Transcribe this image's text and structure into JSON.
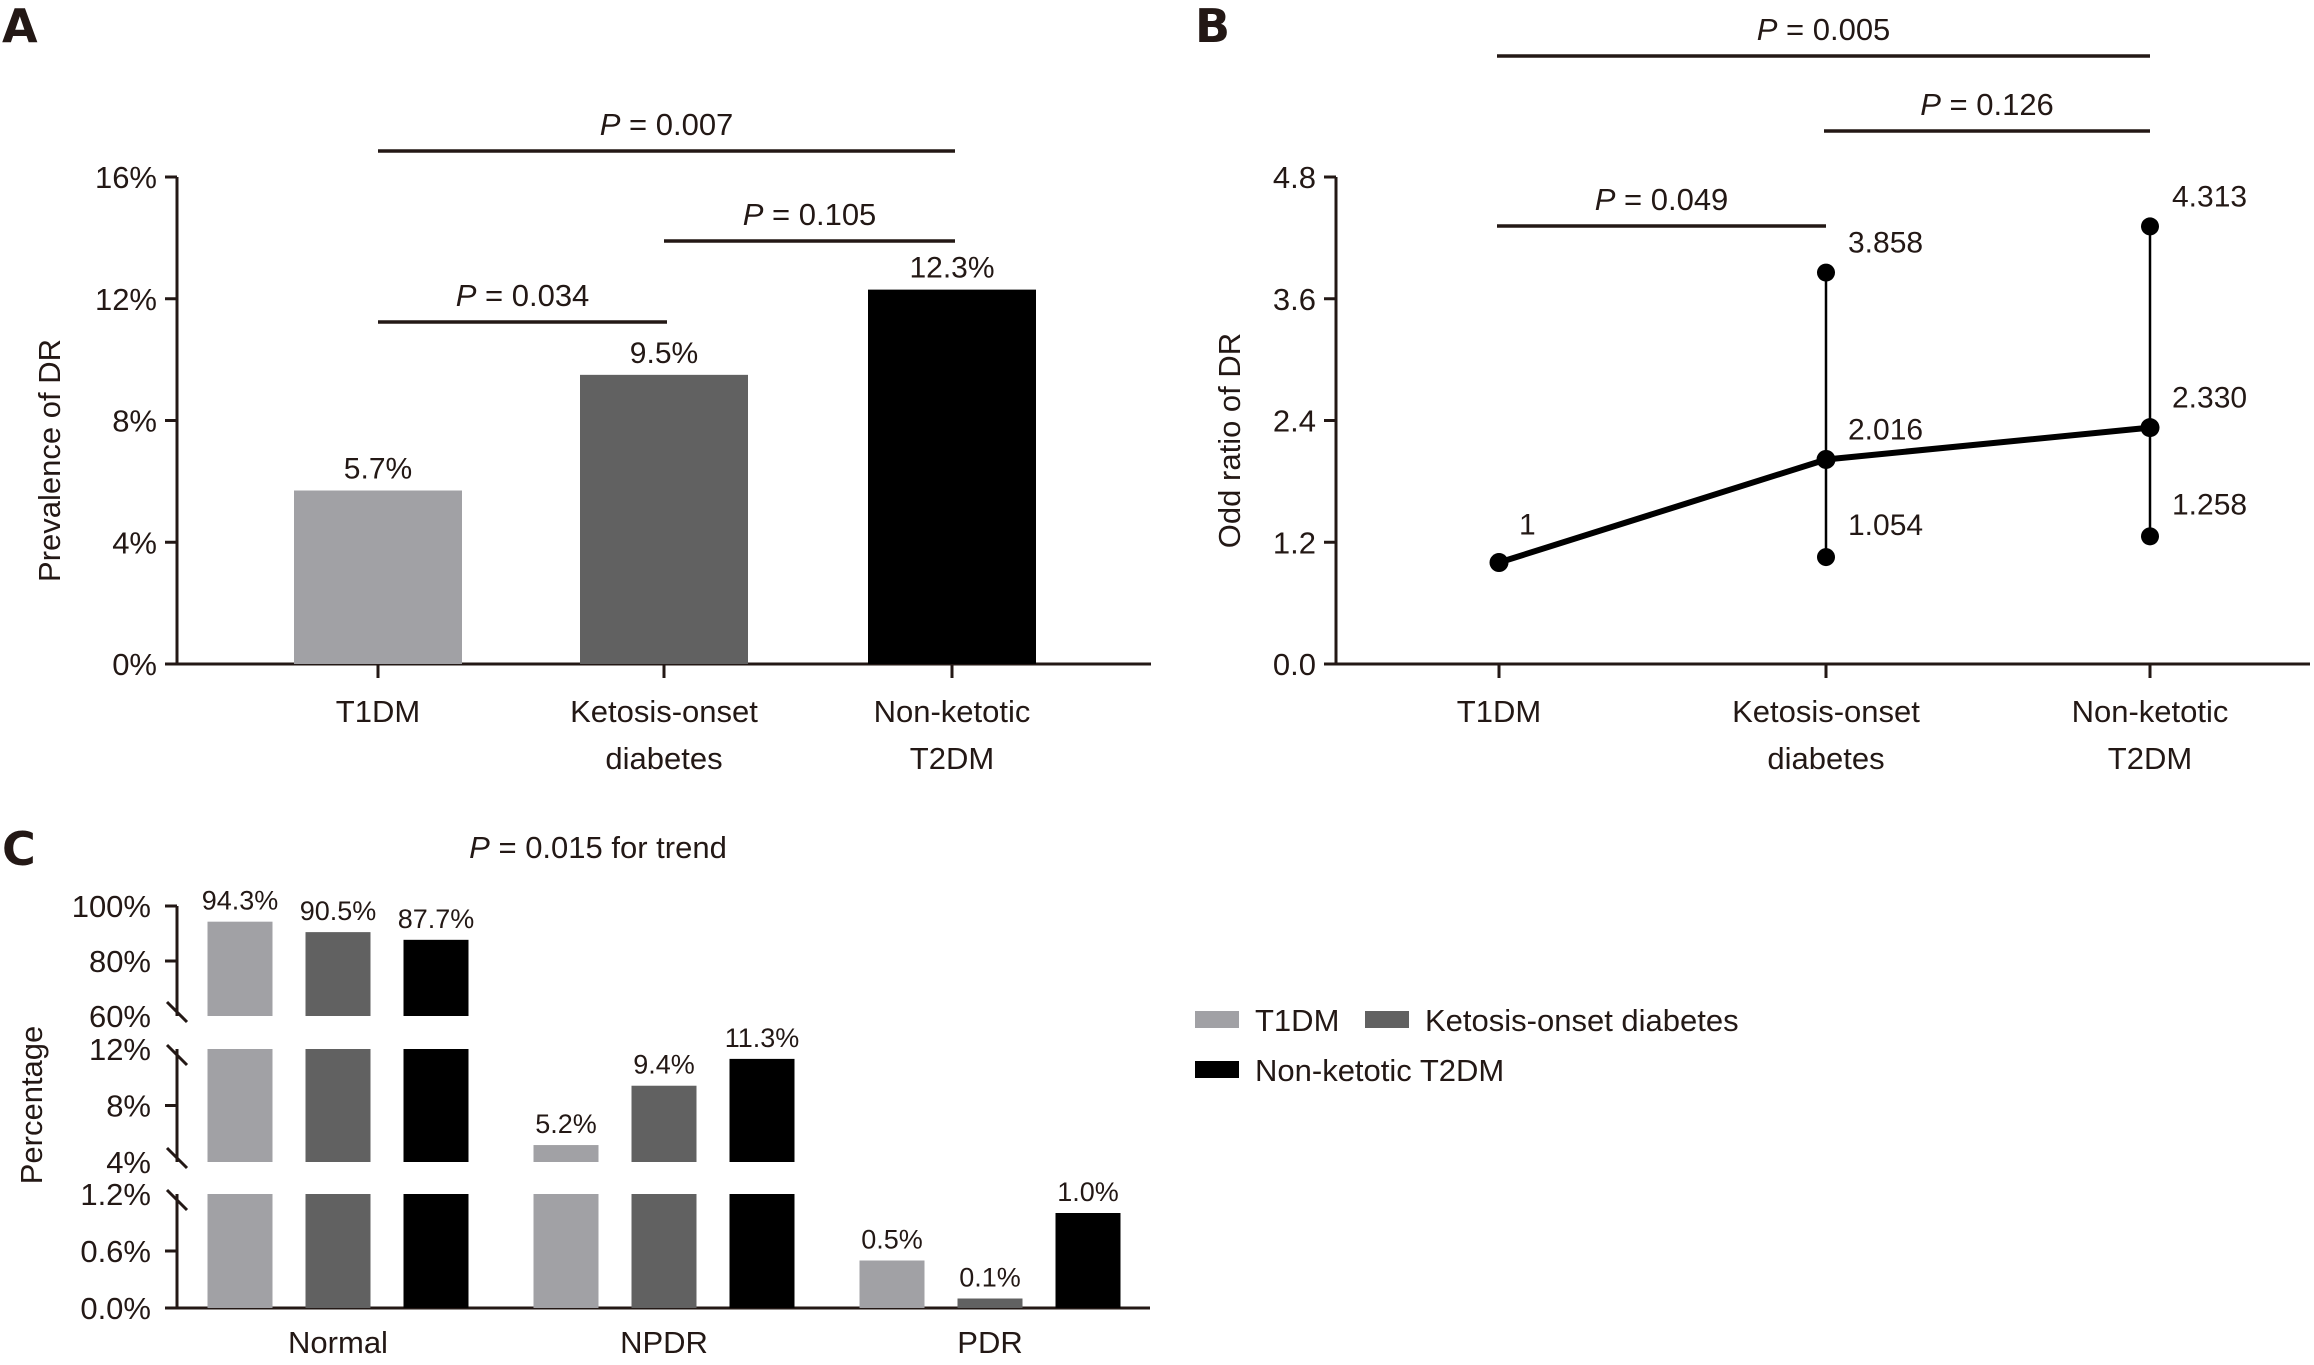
{
  "colors": {
    "T1DM": "#a1a1a5",
    "Ketosis-onset diabetes": "#616161",
    "Non-ketotic T2DM": "#000000",
    "text": "#231815"
  },
  "chart_data": [
    {
      "panel": "A",
      "type": "bar",
      "title": "",
      "xlabel": "",
      "ylabel": "Prevalence of DR",
      "categories": [
        [
          "T1DM"
        ],
        [
          "Ketosis-onset",
          "diabetes"
        ],
        [
          "Non-ketotic",
          "T2DM"
        ]
      ],
      "series_keys": [
        "T1DM",
        "Ketosis-onset diabetes",
        "Non-ketotic T2DM"
      ],
      "values": [
        5.7,
        9.5,
        12.3
      ],
      "value_labels": [
        "5.7%",
        "9.5%",
        "12.3%"
      ],
      "ylim": [
        0,
        16
      ],
      "yticks": [
        0,
        4,
        8,
        12,
        16
      ],
      "ytick_labels": [
        "0%",
        "4%",
        "8%",
        "12%",
        "16%"
      ],
      "grid": false,
      "comparisons": [
        {
          "from": 0,
          "to": 2,
          "label_p": "P",
          "label_rest": " = 0.007",
          "level": 3
        },
        {
          "from": 1,
          "to": 2,
          "label_p": "P",
          "label_rest": " = 0.105",
          "level": 2
        },
        {
          "from": 0,
          "to": 1,
          "label_p": "P",
          "label_rest": " = 0.034",
          "level": 1
        }
      ]
    },
    {
      "panel": "B",
      "type": "line",
      "title": "",
      "xlabel": "",
      "ylabel": "Odd ratio of DR",
      "categories": [
        [
          "T1DM"
        ],
        [
          "Ketosis-onset",
          "diabetes"
        ],
        [
          "Non-ketotic",
          "T2DM"
        ]
      ],
      "values": [
        1,
        2.016,
        2.33
      ],
      "value_labels": [
        "1",
        "2.016",
        "2.330"
      ],
      "ci_lower": [
        null,
        1.054,
        1.258
      ],
      "ci_lower_labels": [
        null,
        "1.054",
        "1.258"
      ],
      "ci_upper": [
        null,
        3.858,
        4.313
      ],
      "ci_upper_labels": [
        null,
        "3.858",
        "4.313"
      ],
      "ylim": [
        0,
        4.8
      ],
      "yticks": [
        0,
        1.2,
        2.4,
        3.6,
        4.8
      ],
      "ytick_labels": [
        "0.0",
        "1.2",
        "2.4",
        "3.6",
        "4.8"
      ],
      "grid": false,
      "comparisons": [
        {
          "from": 0,
          "to": 2,
          "label_p": "P",
          "label_rest": " = 0.005",
          "level": 3
        },
        {
          "from": 1,
          "to": 2,
          "label_p": "P",
          "label_rest": " = 0.126",
          "level": 2
        },
        {
          "from": 0,
          "to": 1,
          "label_p": "P",
          "label_rest": " = 0.049",
          "level": 1
        }
      ]
    },
    {
      "panel": "C",
      "type": "bar",
      "subtype": "grouped, broken y-axis",
      "title_p": "P",
      "title_rest": " = 0.015 for trend",
      "xlabel": "",
      "ylabel": "Percentage",
      "categories": [
        "Normal",
        "NPDR",
        "PDR"
      ],
      "series": [
        {
          "name": "T1DM",
          "values": [
            94.3,
            5.2,
            0.5
          ],
          "labels": [
            "94.3%",
            "5.2%",
            "0.5%"
          ]
        },
        {
          "name": "Ketosis-onset diabetes",
          "values": [
            90.5,
            9.4,
            0.1
          ],
          "labels": [
            "90.5%",
            "9.4%",
            "0.1%"
          ]
        },
        {
          "name": "Non-ketotic T2DM",
          "values": [
            87.7,
            11.3,
            1.0
          ],
          "labels": [
            "87.7%",
            "11.3%",
            "1.0%"
          ]
        }
      ],
      "y_segments": [
        {
          "range": [
            0,
            1.2
          ],
          "ticks": [
            0,
            0.6,
            1.2
          ],
          "tick_labels": [
            "0.0%",
            "0.6%",
            "1.2%"
          ]
        },
        {
          "range": [
            4,
            12
          ],
          "ticks": [
            4,
            8,
            12
          ],
          "tick_labels": [
            "4%",
            "8%",
            "12%"
          ]
        },
        {
          "range": [
            60,
            100
          ],
          "ticks": [
            60,
            80,
            100
          ],
          "tick_labels": [
            "60%",
            "80%",
            "100%"
          ]
        }
      ],
      "legend": {
        "position": "right",
        "entries": [
          "T1DM",
          "Ketosis-onset diabetes",
          "Non-ketotic T2DM"
        ]
      },
      "grid": false
    }
  ],
  "panel_labels": [
    "A",
    "B",
    "C"
  ]
}
